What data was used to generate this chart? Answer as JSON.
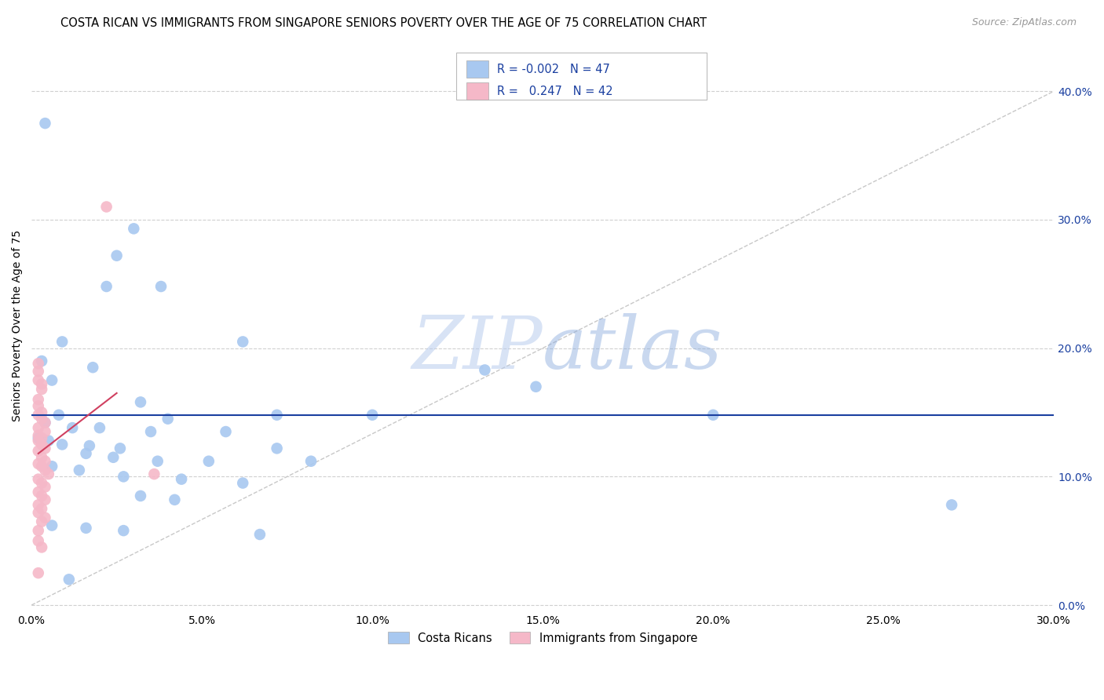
{
  "title": "COSTA RICAN VS IMMIGRANTS FROM SINGAPORE SENIORS POVERTY OVER THE AGE OF 75 CORRELATION CHART",
  "source": "Source: ZipAtlas.com",
  "ylabel": "Seniors Poverty Over the Age of 75",
  "xlim": [
    0.0,
    0.3
  ],
  "ylim": [
    -0.005,
    0.44
  ],
  "xticks": [
    0.0,
    0.05,
    0.1,
    0.15,
    0.2,
    0.25,
    0.3
  ],
  "yticks": [
    0.0,
    0.1,
    0.2,
    0.3,
    0.4
  ],
  "r_blue": -0.002,
  "n_blue": 47,
  "r_pink": 0.247,
  "n_pink": 42,
  "legend_labels": [
    "Costa Ricans",
    "Immigrants from Singapore"
  ],
  "watermark_zip": "ZIP",
  "watermark_atlas": "atlas",
  "blue_color": "#a8c8f0",
  "pink_color": "#f5b8c8",
  "blue_line_color": "#1a3fa0",
  "pink_line_color": "#d04060",
  "diagonal_color": "#c8c8c8",
  "grid_color": "#d0d0d0",
  "blue_scatter": [
    [
      0.004,
      0.375
    ],
    [
      0.03,
      0.293
    ],
    [
      0.025,
      0.272
    ],
    [
      0.022,
      0.248
    ],
    [
      0.038,
      0.248
    ],
    [
      0.009,
      0.205
    ],
    [
      0.062,
      0.205
    ],
    [
      0.003,
      0.19
    ],
    [
      0.018,
      0.185
    ],
    [
      0.133,
      0.183
    ],
    [
      0.006,
      0.175
    ],
    [
      0.148,
      0.17
    ],
    [
      0.032,
      0.158
    ],
    [
      0.04,
      0.145
    ],
    [
      0.2,
      0.148
    ],
    [
      0.27,
      0.078
    ],
    [
      0.008,
      0.148
    ],
    [
      0.072,
      0.148
    ],
    [
      0.1,
      0.148
    ],
    [
      0.004,
      0.142
    ],
    [
      0.012,
      0.138
    ],
    [
      0.02,
      0.138
    ],
    [
      0.035,
      0.135
    ],
    [
      0.057,
      0.135
    ],
    [
      0.002,
      0.13
    ],
    [
      0.005,
      0.128
    ],
    [
      0.009,
      0.125
    ],
    [
      0.017,
      0.124
    ],
    [
      0.026,
      0.122
    ],
    [
      0.072,
      0.122
    ],
    [
      0.016,
      0.118
    ],
    [
      0.024,
      0.115
    ],
    [
      0.037,
      0.112
    ],
    [
      0.052,
      0.112
    ],
    [
      0.082,
      0.112
    ],
    [
      0.006,
      0.108
    ],
    [
      0.014,
      0.105
    ],
    [
      0.027,
      0.1
    ],
    [
      0.044,
      0.098
    ],
    [
      0.062,
      0.095
    ],
    [
      0.032,
      0.085
    ],
    [
      0.042,
      0.082
    ],
    [
      0.006,
      0.062
    ],
    [
      0.016,
      0.06
    ],
    [
      0.027,
      0.058
    ],
    [
      0.067,
      0.055
    ],
    [
      0.011,
      0.02
    ]
  ],
  "pink_scatter": [
    [
      0.022,
      0.31
    ],
    [
      0.002,
      0.188
    ],
    [
      0.002,
      0.182
    ],
    [
      0.002,
      0.175
    ],
    [
      0.003,
      0.172
    ],
    [
      0.003,
      0.168
    ],
    [
      0.002,
      0.16
    ],
    [
      0.002,
      0.155
    ],
    [
      0.003,
      0.15
    ],
    [
      0.002,
      0.148
    ],
    [
      0.003,
      0.145
    ],
    [
      0.004,
      0.142
    ],
    [
      0.002,
      0.138
    ],
    [
      0.004,
      0.135
    ],
    [
      0.002,
      0.132
    ],
    [
      0.003,
      0.13
    ],
    [
      0.002,
      0.128
    ],
    [
      0.003,
      0.125
    ],
    [
      0.004,
      0.122
    ],
    [
      0.002,
      0.12
    ],
    [
      0.003,
      0.115
    ],
    [
      0.004,
      0.112
    ],
    [
      0.002,
      0.11
    ],
    [
      0.003,
      0.108
    ],
    [
      0.004,
      0.105
    ],
    [
      0.005,
      0.102
    ],
    [
      0.036,
      0.102
    ],
    [
      0.002,
      0.098
    ],
    [
      0.003,
      0.095
    ],
    [
      0.004,
      0.092
    ],
    [
      0.002,
      0.088
    ],
    [
      0.003,
      0.085
    ],
    [
      0.004,
      0.082
    ],
    [
      0.002,
      0.078
    ],
    [
      0.003,
      0.075
    ],
    [
      0.002,
      0.072
    ],
    [
      0.004,
      0.068
    ],
    [
      0.003,
      0.065
    ],
    [
      0.002,
      0.058
    ],
    [
      0.002,
      0.05
    ],
    [
      0.003,
      0.045
    ],
    [
      0.002,
      0.025
    ]
  ],
  "blue_trend_y_at_x0": 0.148,
  "blue_trend_y_at_x30": 0.148,
  "pink_trend_x0": 0.002,
  "pink_trend_y0": 0.118,
  "pink_trend_x1": 0.025,
  "pink_trend_y1": 0.165
}
